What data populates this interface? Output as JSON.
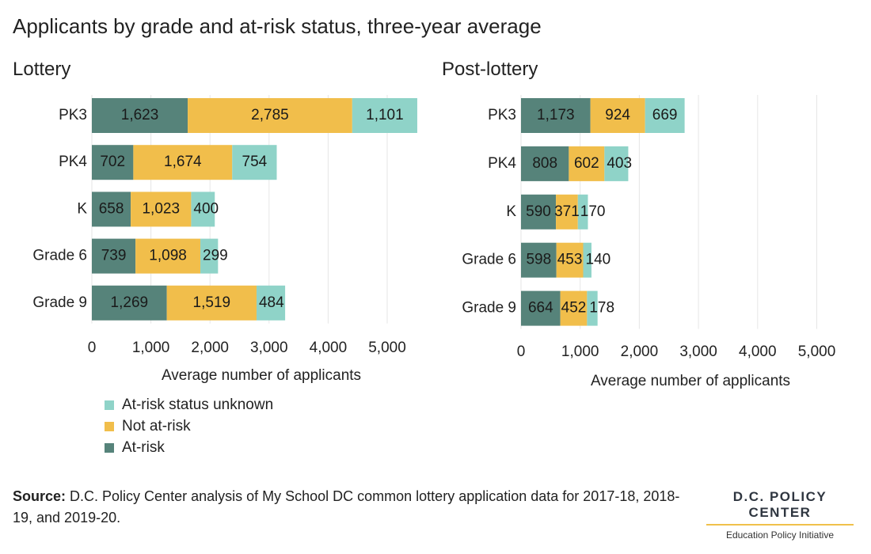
{
  "title": "Applicants by grade and at-risk status, three-year average",
  "colors": {
    "at_risk": "#56837a",
    "not_at_risk": "#f1be4b",
    "unknown": "#8fd3c8",
    "grid": "#e6e6e6"
  },
  "chart_data": [
    {
      "type": "bar",
      "orientation": "horizontal",
      "stacked": true,
      "title": "Lottery",
      "categories": [
        "PK3",
        "PK4",
        "K",
        "Grade 6",
        "Grade 9"
      ],
      "series": [
        {
          "name": "At-risk",
          "values": [
            1623,
            702,
            658,
            739,
            1269
          ],
          "labels": [
            "1,623",
            "702",
            "658",
            "739",
            "1,269"
          ]
        },
        {
          "name": "Not at-risk",
          "values": [
            2785,
            1674,
            1023,
            1098,
            1519
          ],
          "labels": [
            "2,785",
            "1,674",
            "1,023",
            "1,098",
            "1,519"
          ]
        },
        {
          "name": "At-risk status unknown",
          "values": [
            1101,
            754,
            400,
            299,
            484
          ],
          "labels": [
            "1,101",
            "754",
            "400",
            "299",
            "484"
          ]
        }
      ],
      "xlabel": "Average number of applicants",
      "xlim": [
        0,
        5500
      ],
      "xticks": [
        0,
        1000,
        2000,
        3000,
        4000,
        5000
      ],
      "xtick_labels": [
        "0",
        "1,000",
        "2,000",
        "3,000",
        "4,000",
        "5,000"
      ],
      "grid": true
    },
    {
      "type": "bar",
      "orientation": "horizontal",
      "stacked": true,
      "title": "Post-lottery",
      "categories": [
        "PK3",
        "PK4",
        "K",
        "Grade 6",
        "Grade 9"
      ],
      "series": [
        {
          "name": "At-risk",
          "values": [
            1173,
            808,
            590,
            598,
            664
          ],
          "labels": [
            "1,173",
            "808",
            "590",
            "598",
            "664"
          ]
        },
        {
          "name": "Not at-risk",
          "values": [
            924,
            602,
            371,
            453,
            452
          ],
          "labels": [
            "924",
            "602",
            "371",
            "453",
            "452"
          ]
        },
        {
          "name": "At-risk status unknown",
          "values": [
            669,
            403,
            170,
            140,
            178
          ],
          "labels": [
            "669",
            "403",
            "170",
            "140",
            "178"
          ]
        }
      ],
      "xlabel": "Average number of applicants",
      "xlim": [
        0,
        5500
      ],
      "xticks": [
        0,
        1000,
        2000,
        3000,
        4000,
        5000
      ],
      "xtick_labels": [
        "0",
        "1,000",
        "2,000",
        "3,000",
        "4,000",
        "5,000"
      ],
      "grid": true
    }
  ],
  "legend": {
    "items": [
      {
        "label": "At-risk status unknown",
        "color": "#8fd3c8"
      },
      {
        "label": "Not at-risk",
        "color": "#f1be4b"
      },
      {
        "label": "At-risk",
        "color": "#56837a"
      }
    ]
  },
  "source": {
    "label": "Source:",
    "text": " D.C. Policy Center analysis of My School DC common lottery application data for 2017-18, 2018-19, and 2019-20."
  },
  "logo": {
    "name": "D.C. POLICY CENTER",
    "subtitle": "Education Policy Initiative"
  }
}
